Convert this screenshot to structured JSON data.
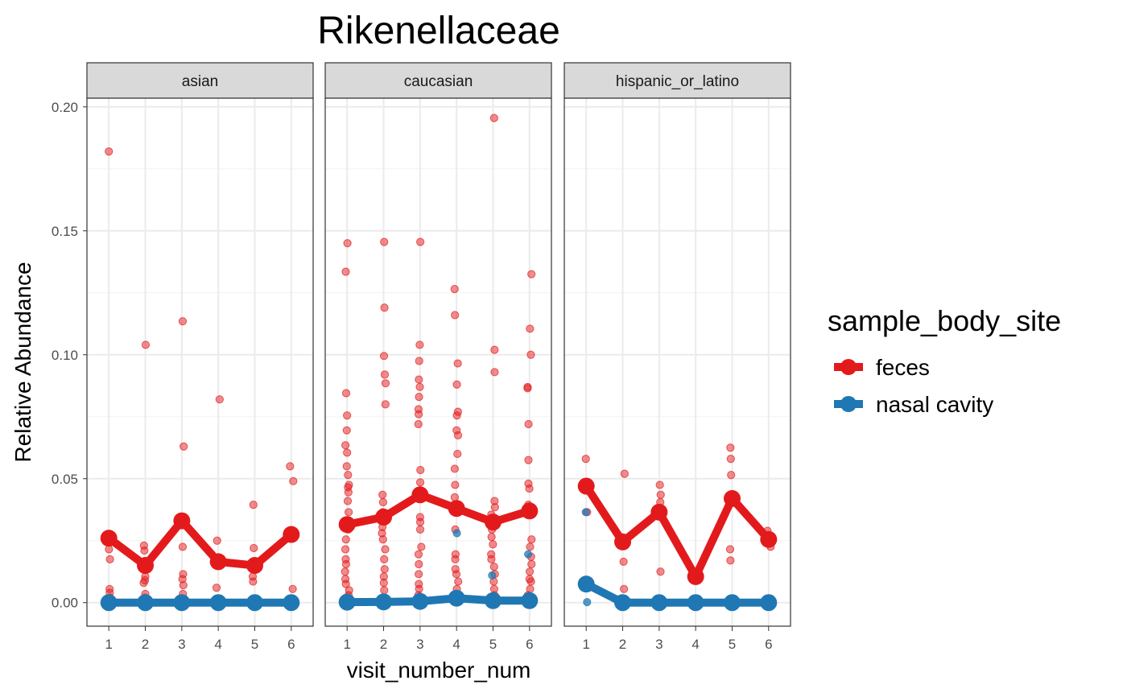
{
  "chart_data": {
    "type": "line",
    "title": "Rikenellaceae",
    "xlabel": "visit_number_num",
    "ylabel": "Relative Abundance",
    "ylim": [
      -0.0095,
      0.2035
    ],
    "y_ticks": [
      "0.00",
      "0.05",
      "0.10",
      "0.15",
      "0.20"
    ],
    "x_ticks": [
      "1",
      "2",
      "3",
      "4",
      "5",
      "6"
    ],
    "grid": true,
    "legend": {
      "title": "sample_body_site",
      "position": "right",
      "entries": [
        {
          "label": "feces",
          "color": "#e31a1c"
        },
        {
          "label": "nasal cavity",
          "color": "#1f78b4"
        }
      ]
    },
    "facets": [
      {
        "label": "asian",
        "series": [
          {
            "name": "feces",
            "x": [
              1,
              2,
              3,
              4,
              5,
              6
            ],
            "values": [
              0.026,
              0.015,
              0.033,
              0.0165,
              0.015,
              0.0275
            ]
          },
          {
            "name": "nasal cavity",
            "x": [
              1,
              2,
              3,
              4,
              5,
              6
            ],
            "values": [
              0.0,
              0.0,
              0.0,
              0.0,
              0.0,
              0.0
            ]
          }
        ],
        "points": {
          "feces": [
            [
              1,
              0.182
            ],
            [
              1,
              0.0245
            ],
            [
              1,
              0.0215
            ],
            [
              1,
              0.0175
            ],
            [
              1,
              0.0055
            ],
            [
              1,
              0.004
            ],
            [
              1,
              0.002
            ],
            [
              2,
              0.104
            ],
            [
              2,
              0.023
            ],
            [
              2,
              0.021
            ],
            [
              2,
              0.0105
            ],
            [
              2,
              0.009
            ],
            [
              2,
              0.008
            ],
            [
              2,
              0.0035
            ],
            [
              2,
              0.002
            ],
            [
              3,
              0.1135
            ],
            [
              3,
              0.063
            ],
            [
              3,
              0.0225
            ],
            [
              3,
              0.0115
            ],
            [
              3,
              0.0095
            ],
            [
              3,
              0.007
            ],
            [
              3,
              0.0035
            ],
            [
              4,
              0.082
            ],
            [
              4,
              0.025
            ],
            [
              4,
              0.006
            ],
            [
              5,
              0.0395
            ],
            [
              5,
              0.022
            ],
            [
              5,
              0.0105
            ],
            [
              5,
              0.0085
            ],
            [
              6,
              0.055
            ],
            [
              6,
              0.049
            ],
            [
              6,
              0.0055
            ]
          ],
          "nasal cavity": []
        }
      },
      {
        "label": "caucasian",
        "series": [
          {
            "name": "feces",
            "x": [
              1,
              2,
              3,
              4,
              5,
              6
            ],
            "values": [
              0.0315,
              0.0345,
              0.0435,
              0.038,
              0.0325,
              0.037
            ]
          },
          {
            "name": "nasal cavity",
            "x": [
              1,
              2,
              3,
              4,
              5,
              6
            ],
            "values": [
              0.0002,
              0.0003,
              0.0005,
              0.0018,
              0.0008,
              0.0008
            ]
          }
        ],
        "points": {
          "feces": [
            [
              1,
              0.145
            ],
            [
              1,
              0.1335
            ],
            [
              1,
              0.0845
            ],
            [
              1,
              0.0755
            ],
            [
              1,
              0.0695
            ],
            [
              1,
              0.0635
            ],
            [
              1,
              0.0605
            ],
            [
              1,
              0.055
            ],
            [
              1,
              0.0515
            ],
            [
              1,
              0.0475
            ],
            [
              1,
              0.0465
            ],
            [
              1,
              0.0445
            ],
            [
              1,
              0.041
            ],
            [
              1,
              0.0365
            ],
            [
              1,
              0.0325
            ],
            [
              1,
              0.0295
            ],
            [
              1,
              0.0255
            ],
            [
              1,
              0.0215
            ],
            [
              1,
              0.0175
            ],
            [
              1,
              0.0155
            ],
            [
              1,
              0.0125
            ],
            [
              1,
              0.0095
            ],
            [
              1,
              0.0075
            ],
            [
              1,
              0.005
            ],
            [
              1,
              0.003
            ],
            [
              2,
              0.1455
            ],
            [
              2,
              0.119
            ],
            [
              2,
              0.0995
            ],
            [
              2,
              0.092
            ],
            [
              2,
              0.0885
            ],
            [
              2,
              0.08
            ],
            [
              2,
              0.0435
            ],
            [
              2,
              0.0405
            ],
            [
              2,
              0.0365
            ],
            [
              2,
              0.0335
            ],
            [
              2,
              0.0305
            ],
            [
              2,
              0.028
            ],
            [
              2,
              0.0255
            ],
            [
              2,
              0.0215
            ],
            [
              2,
              0.0175
            ],
            [
              2,
              0.0135
            ],
            [
              2,
              0.0105
            ],
            [
              2,
              0.008
            ],
            [
              2,
              0.005
            ],
            [
              3,
              0.1455
            ],
            [
              3,
              0.104
            ],
            [
              3,
              0.0975
            ],
            [
              3,
              0.09
            ],
            [
              3,
              0.087
            ],
            [
              3,
              0.083
            ],
            [
              3,
              0.078
            ],
            [
              3,
              0.076
            ],
            [
              3,
              0.072
            ],
            [
              3,
              0.0535
            ],
            [
              3,
              0.0485
            ],
            [
              3,
              0.0425
            ],
            [
              3,
              0.0345
            ],
            [
              3,
              0.0325
            ],
            [
              3,
              0.0295
            ],
            [
              3,
              0.0225
            ],
            [
              3,
              0.0195
            ],
            [
              3,
              0.0155
            ],
            [
              3,
              0.0115
            ],
            [
              3,
              0.0075
            ],
            [
              3,
              0.0055
            ],
            [
              3,
              0.003
            ],
            [
              4,
              0.1265
            ],
            [
              4,
              0.116
            ],
            [
              4,
              0.0965
            ],
            [
              4,
              0.088
            ],
            [
              4,
              0.077
            ],
            [
              4,
              0.0755
            ],
            [
              4,
              0.0695
            ],
            [
              4,
              0.0675
            ],
            [
              4,
              0.06
            ],
            [
              4,
              0.054
            ],
            [
              4,
              0.0475
            ],
            [
              4,
              0.0425
            ],
            [
              4,
              0.0295
            ],
            [
              4,
              0.0195
            ],
            [
              4,
              0.0175
            ],
            [
              4,
              0.0135
            ],
            [
              4,
              0.0115
            ],
            [
              4,
              0.0085
            ],
            [
              4,
              0.0055
            ],
            [
              5,
              0.1955
            ],
            [
              5,
              0.102
            ],
            [
              5,
              0.093
            ],
            [
              5,
              0.041
            ],
            [
              5,
              0.0385
            ],
            [
              5,
              0.0355
            ],
            [
              5,
              0.0325
            ],
            [
              5,
              0.0295
            ],
            [
              5,
              0.0265
            ],
            [
              5,
              0.0235
            ],
            [
              5,
              0.0195
            ],
            [
              5,
              0.0175
            ],
            [
              5,
              0.0145
            ],
            [
              5,
              0.0115
            ],
            [
              5,
              0.0085
            ],
            [
              5,
              0.0055
            ],
            [
              5,
              0.003
            ],
            [
              6,
              0.1325
            ],
            [
              6,
              0.1105
            ],
            [
              6,
              0.1
            ],
            [
              6,
              0.087
            ],
            [
              6,
              0.0865
            ],
            [
              6,
              0.072
            ],
            [
              6,
              0.0575
            ],
            [
              6,
              0.048
            ],
            [
              6,
              0.046
            ],
            [
              6,
              0.0395
            ],
            [
              6,
              0.0255
            ],
            [
              6,
              0.0225
            ],
            [
              6,
              0.0185
            ],
            [
              6,
              0.0155
            ],
            [
              6,
              0.0125
            ],
            [
              6,
              0.0095
            ],
            [
              6,
              0.0085
            ],
            [
              6,
              0.0055
            ],
            [
              6,
              0.003
            ]
          ],
          "nasal cavity": [
            [
              4,
              0.028
            ],
            [
              6,
              0.0195
            ],
            [
              5,
              0.011
            ]
          ]
        }
      },
      {
        "label": "hispanic_or_latino",
        "series": [
          {
            "name": "feces",
            "x": [
              1,
              2,
              3,
              4,
              5,
              6
            ],
            "values": [
              0.047,
              0.0245,
              0.0365,
              0.0105,
              0.042,
              0.0255
            ]
          },
          {
            "name": "nasal cavity",
            "x": [
              1,
              2,
              3,
              4,
              5,
              6
            ],
            "values": [
              0.0075,
              0.0,
              0.0,
              0.0,
              0.0,
              0.0
            ]
          }
        ],
        "points": {
          "feces": [
            [
              1,
              0.058
            ],
            [
              1,
              0.0365
            ],
            [
              2,
              0.052
            ],
            [
              2,
              0.0165
            ],
            [
              2,
              0.0055
            ],
            [
              3,
              0.0475
            ],
            [
              3,
              0.0435
            ],
            [
              3,
              0.0405
            ],
            [
              3,
              0.0125
            ],
            [
              4,
              0.0095
            ],
            [
              5,
              0.0625
            ],
            [
              5,
              0.058
            ],
            [
              5,
              0.0515
            ],
            [
              5,
              0.0215
            ],
            [
              5,
              0.017
            ],
            [
              6,
              0.029
            ],
            [
              6,
              0.0225
            ]
          ],
          "nasal cavity": [
            [
              1,
              0.0365
            ],
            [
              1,
              0.0002
            ]
          ]
        }
      }
    ]
  }
}
